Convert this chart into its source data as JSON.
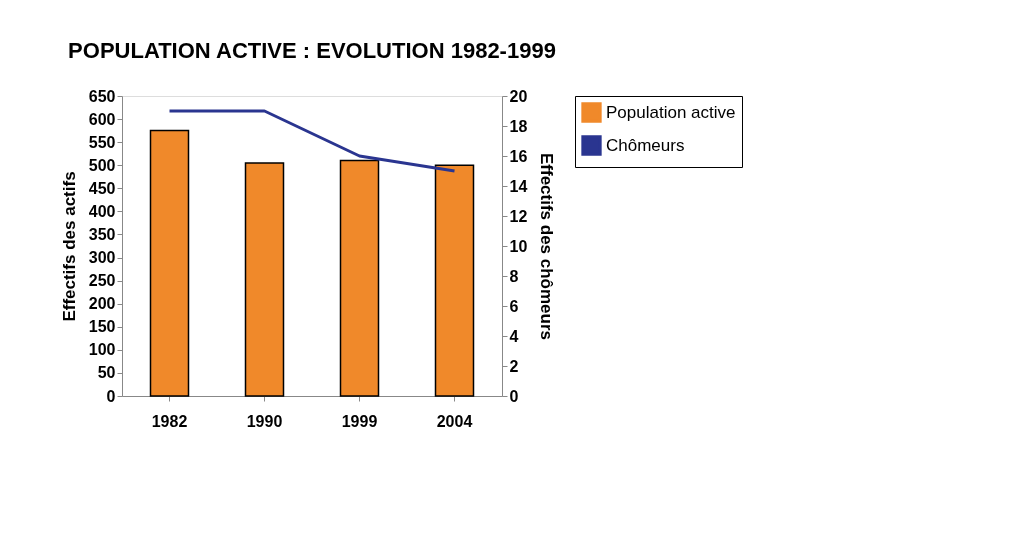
{
  "chart_data": {
    "type": "bar",
    "title": "POPULATION ACTIVE : EVOLUTION 1982-1999",
    "categories": [
      "1982",
      "1990",
      "1999",
      "2004"
    ],
    "series": [
      {
        "name": "Population active",
        "color": "#f0892a",
        "values": [
          575,
          505,
          510,
          500
        ]
      },
      {
        "name": "Chômeurs",
        "type": "line",
        "axis": "y2",
        "color": "#2a3590",
        "values": [
          19,
          19,
          16,
          15
        ]
      }
    ],
    "ylabel": "Effectifs des actifs",
    "y2label": "Effectifs des chômeurs",
    "ylim": [
      0,
      650
    ],
    "yticks": [
      0,
      50,
      100,
      150,
      200,
      250,
      300,
      350,
      400,
      450,
      500,
      550,
      600,
      650
    ],
    "y2lim": [
      0,
      20
    ],
    "y2ticks": [
      0,
      2,
      4,
      6,
      8,
      10,
      12,
      14,
      16,
      18,
      20
    ],
    "legend": "right",
    "grid": false
  }
}
